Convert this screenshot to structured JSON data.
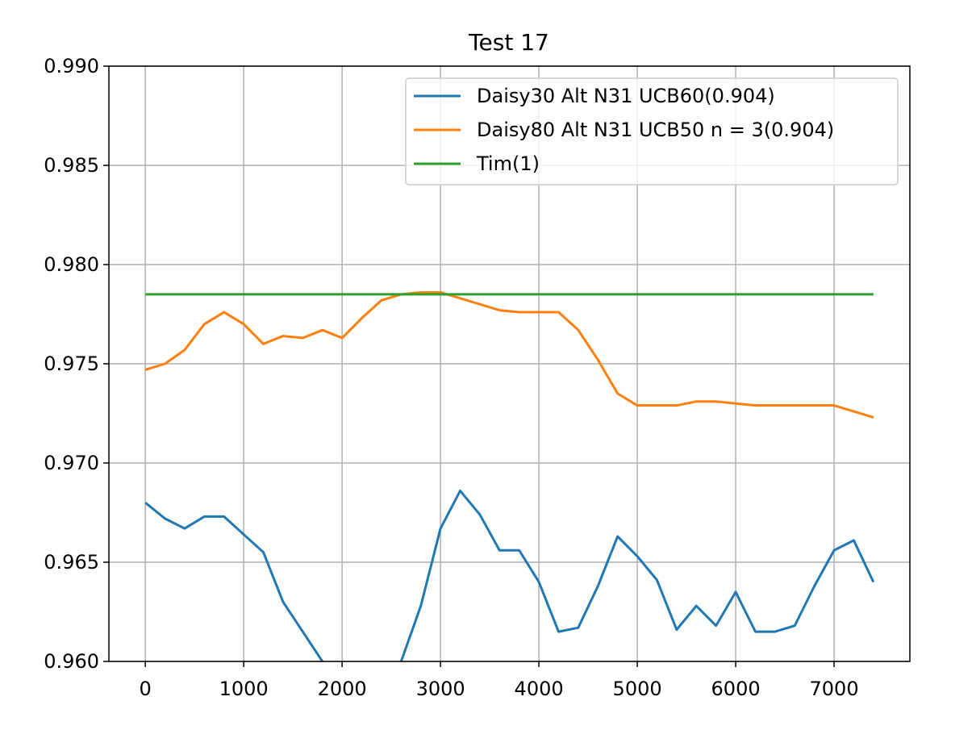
{
  "chart_data": {
    "type": "line",
    "title": "Test 17",
    "x": [
      0,
      200,
      400,
      600,
      800,
      1000,
      1200,
      1400,
      1600,
      1800,
      2000,
      2200,
      2400,
      2600,
      2800,
      3000,
      3200,
      3400,
      3600,
      3800,
      4000,
      4200,
      4400,
      4600,
      4800,
      5000,
      5200,
      5400,
      5600,
      5800,
      6000,
      6200,
      6400,
      6600,
      6800,
      7000,
      7200,
      7400
    ],
    "series": [
      {
        "name": "Daisy30 Alt N31 UCB60(0.904)",
        "color": "#1f77b4",
        "values": [
          0.968,
          0.9672,
          0.9667,
          0.9673,
          0.9673,
          0.9664,
          0.9655,
          0.963,
          0.9615,
          0.96,
          0.9585,
          0.9575,
          0.9575,
          0.96,
          0.9628,
          0.9667,
          0.9686,
          0.9674,
          0.9656,
          0.9656,
          0.964,
          0.9615,
          0.9617,
          0.9638,
          0.9663,
          0.9653,
          0.9641,
          0.9616,
          0.9628,
          0.9618,
          0.9635,
          0.9615,
          0.9615,
          0.9618,
          0.9638,
          0.9656,
          0.9661,
          0.964
        ]
      },
      {
        "name": "Daisy80 Alt N31 UCB50 n = 3(0.904)",
        "color": "#ff7f0e",
        "values": [
          0.9747,
          0.975,
          0.9757,
          0.977,
          0.9776,
          0.977,
          0.976,
          0.9764,
          0.9763,
          0.9767,
          0.9763,
          0.9773,
          0.9782,
          0.9785,
          0.9786,
          0.9786,
          0.9783,
          0.978,
          0.9777,
          0.9776,
          0.9776,
          0.9776,
          0.9767,
          0.9752,
          0.9735,
          0.9729,
          0.9729,
          0.9729,
          0.9731,
          0.9731,
          0.973,
          0.9729,
          0.9729,
          0.9729,
          0.9729,
          0.9729,
          0.9726,
          0.9723
        ]
      },
      {
        "name": "Tim(1)",
        "color": "#2ca02c",
        "values": [
          0.9785,
          0.9785,
          0.9785,
          0.9785,
          0.9785,
          0.9785,
          0.9785,
          0.9785,
          0.9785,
          0.9785,
          0.9785,
          0.9785,
          0.9785,
          0.9785,
          0.9785,
          0.9785,
          0.9785,
          0.9785,
          0.9785,
          0.9785,
          0.9785,
          0.9785,
          0.9785,
          0.9785,
          0.9785,
          0.9785,
          0.9785,
          0.9785,
          0.9785,
          0.9785,
          0.9785,
          0.9785,
          0.9785,
          0.9785,
          0.9785,
          0.9785,
          0.9785,
          0.9785
        ]
      }
    ],
    "xlim": [
      -370,
      7770
    ],
    "xticks": [
      0,
      1000,
      2000,
      3000,
      4000,
      5000,
      6000,
      7000
    ],
    "ylim": [
      0.96,
      0.99
    ],
    "yticks": [
      {
        "value": 0.96,
        "label": "0.960"
      },
      {
        "value": 0.965,
        "label": "0.965"
      },
      {
        "value": 0.97,
        "label": "0.970"
      },
      {
        "value": 0.975,
        "label": "0.975"
      },
      {
        "value": 0.98,
        "label": "0.980"
      },
      {
        "value": 0.985,
        "label": "0.985"
      },
      {
        "value": 0.99,
        "label": "0.990"
      }
    ],
    "grid": true,
    "legend": "upper right"
  }
}
